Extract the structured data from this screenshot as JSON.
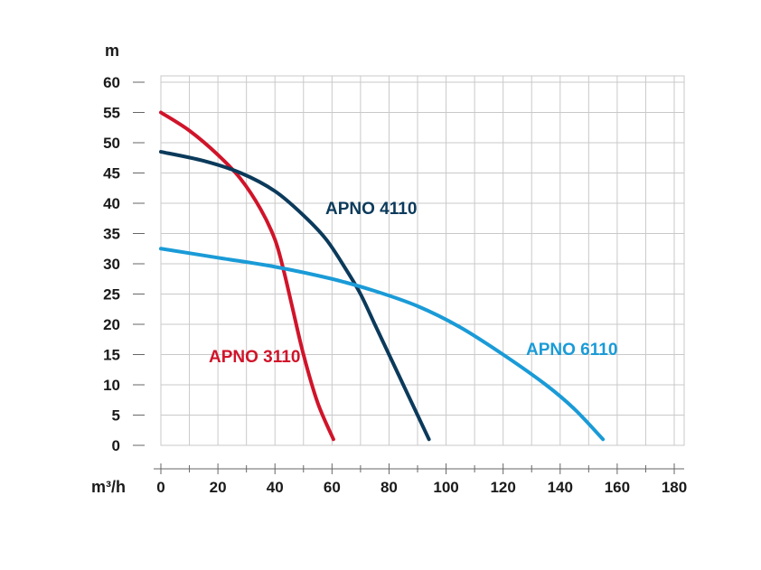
{
  "chart_data": {
    "type": "line",
    "ylabel": "m",
    "xlabel": "m³/h",
    "xlim": [
      0,
      180
    ],
    "ylim": [
      0,
      60
    ],
    "x_ticks": [
      "0",
      "20",
      "40",
      "60",
      "80",
      "100",
      "120",
      "140",
      "160",
      "180"
    ],
    "y_ticks": [
      "0",
      "5",
      "10",
      "15",
      "20",
      "25",
      "30",
      "35",
      "40",
      "45",
      "50",
      "55",
      "60"
    ],
    "grid": true,
    "series": [
      {
        "name": "APNO 3110",
        "color": "#d0142a",
        "x": [
          0,
          10,
          20,
          28,
          35,
          40,
          43,
          46,
          50,
          55,
          60.5
        ],
        "y": [
          55,
          52,
          48,
          44,
          39,
          34,
          29,
          23,
          15,
          7,
          1
        ]
      },
      {
        "name": "APNO 4110",
        "color": "#0b3a5b",
        "x": [
          0,
          15,
          28,
          40,
          50,
          58,
          65,
          70,
          75,
          80,
          85,
          90,
          94
        ],
        "y": [
          48.5,
          47,
          45,
          42,
          38,
          34,
          29,
          25,
          20,
          15,
          10,
          5,
          1
        ]
      },
      {
        "name": "APNO 6110",
        "color": "#1a9bd7",
        "x": [
          0,
          20,
          40,
          60,
          75,
          90,
          105,
          120,
          135,
          145,
          155
        ],
        "y": [
          32.5,
          31,
          29.5,
          27.5,
          25.5,
          23,
          19.5,
          15,
          10,
          6,
          1
        ]
      }
    ]
  }
}
